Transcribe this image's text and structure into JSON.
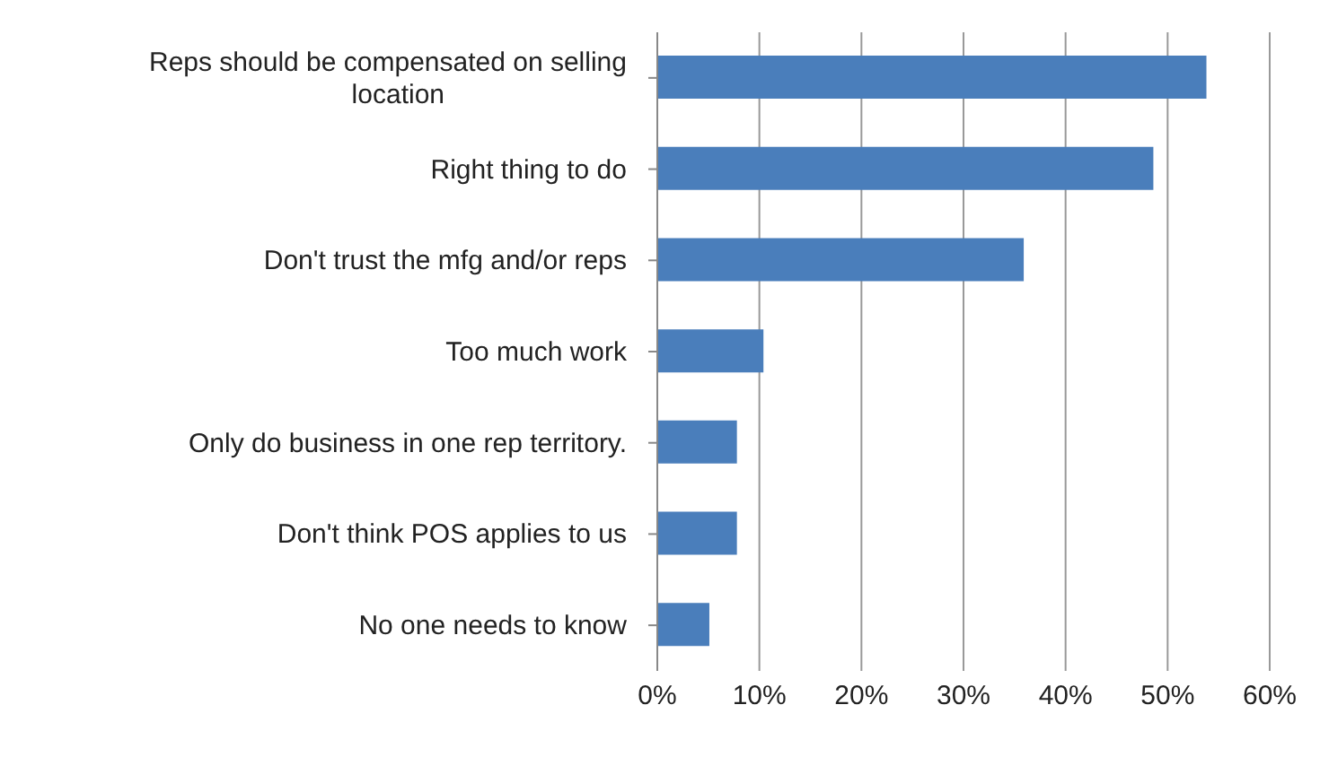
{
  "chart_data": {
    "type": "bar",
    "orientation": "horizontal",
    "categories": [
      "Reps should be compensated on selling location",
      "Right thing to do",
      "Don't trust the mfg and/or reps",
      "Too much work",
      "Only do business in one rep territory.",
      "Don't think POS applies to us",
      "No one needs to know"
    ],
    "values": [
      53.8,
      48.6,
      35.9,
      10.4,
      7.8,
      7.8,
      5.1
    ],
    "color": "#4a7ebb",
    "xlim": [
      0,
      60
    ],
    "xticks": [
      {
        "value": 0,
        "label": "0%"
      },
      {
        "value": 10,
        "label": "10%"
      },
      {
        "value": 20,
        "label": "20%"
      },
      {
        "value": 30,
        "label": "30%"
      },
      {
        "value": 40,
        "label": "40%"
      },
      {
        "value": 50,
        "label": "50%"
      },
      {
        "value": 60,
        "label": "60%"
      }
    ],
    "grid": "x"
  }
}
